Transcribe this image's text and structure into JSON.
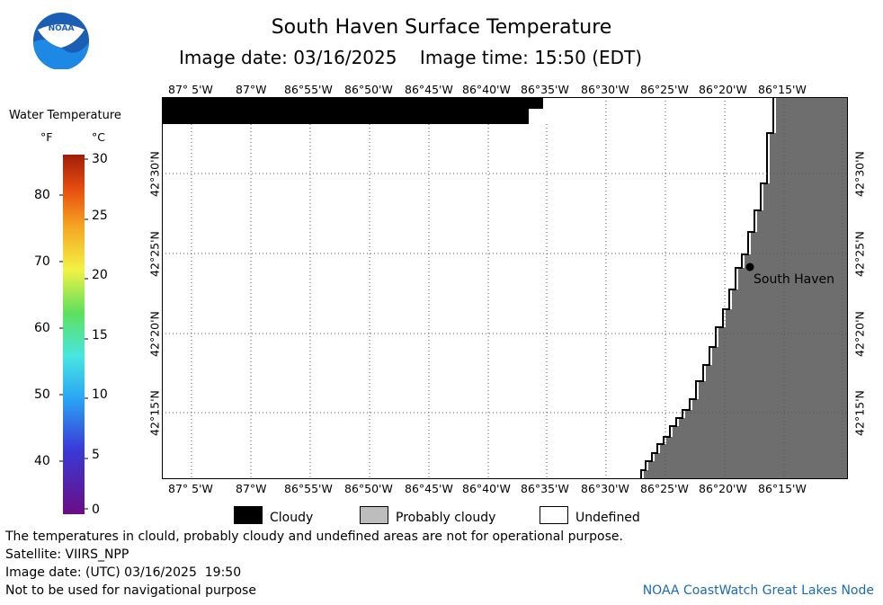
{
  "logo": {
    "text": "NOAA"
  },
  "title": "South Haven Surface Temperature",
  "subtitle": {
    "date_label": "Image date:",
    "date": "03/16/2025",
    "time_label": "Image time:",
    "time": "15:50 (EDT)"
  },
  "colorbar": {
    "title": "Water Temperature",
    "unit_f": "°F",
    "unit_c": "°C",
    "f_ticks": [
      "80",
      "70",
      "60",
      "50",
      "40"
    ],
    "c_ticks": [
      "30",
      "25",
      "20",
      "15",
      "10",
      "5",
      "0"
    ]
  },
  "map": {
    "lon_labels": [
      "87° 5'W",
      "87°W",
      "86°55'W",
      "86°50'W",
      "86°45'W",
      "86°40'W",
      "86°35'W",
      "86°30'W",
      "86°25'W",
      "86°20'W",
      "86°15'W"
    ],
    "lat_labels": [
      "42°30'N",
      "42°25'N",
      "42°20'N",
      "42°15'N"
    ],
    "place_label": "South Haven",
    "colors": {
      "cloudy": "#000000",
      "land": "#6e6e6e",
      "undefined": "#ffffff"
    }
  },
  "legend": {
    "cloudy": "Cloudy",
    "probably_cloudy": "Probably cloudy",
    "undefined": "Undefined"
  },
  "footer": {
    "line1": "The temperatures in clould, probably cloudy and undefined areas are not for operational purpose.",
    "line2": "Satellite: VIIRS_NPP",
    "line3": "Image date: (UTC) 03/16/2025  19:50",
    "line4": "Not to be used for navigational purpose",
    "credit": "NOAA CoastWatch Great Lakes Node"
  }
}
